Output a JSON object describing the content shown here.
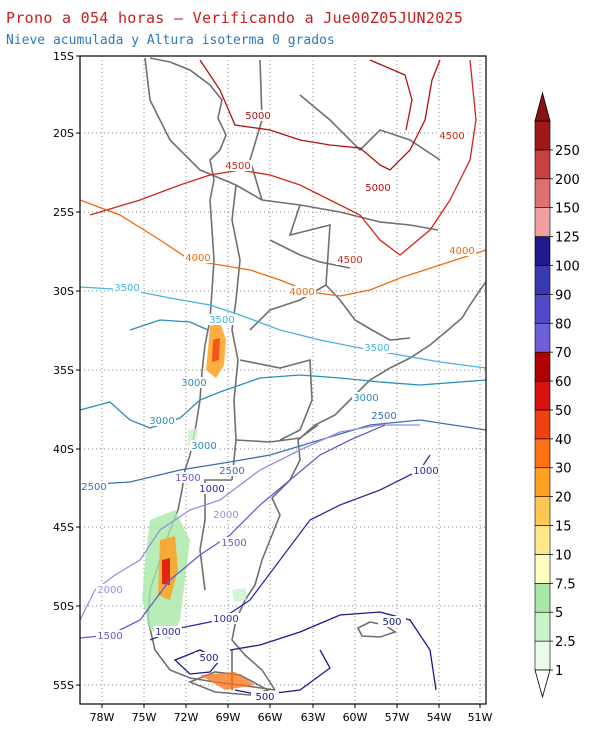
{
  "title": "Prono a 054 horas — Verificando a Jue00Z05JUN2025",
  "subtitle": "Nieve acumulada y Altura isoterma 0 grados",
  "map": {
    "lat_ticks": [
      "15S",
      "20S",
      "25S",
      "30S",
      "35S",
      "40S",
      "45S",
      "50S",
      "55S"
    ],
    "lon_ticks": [
      "78W",
      "75W",
      "72W",
      "69W",
      "66W",
      "63W",
      "60W",
      "57W",
      "54W",
      "51W"
    ],
    "lat_range": [
      -56,
      -15
    ],
    "lon_range": [
      -80,
      -50
    ],
    "grid": true
  },
  "isotherm_colors": {
    "500": "#1a1a8c",
    "1000": "#2e2ea0",
    "1500": "#6a5ad0",
    "2000": "#9b8ee0",
    "2500": "#3a6fb0",
    "3000": "#2b8fb8",
    "3500": "#49b3e0",
    "4000": "#ee6a10",
    "4500": "#d02818",
    "5000": "#b01010"
  },
  "contour_labels": [
    {
      "text": "5000",
      "key": "5000"
    },
    {
      "text": "4500",
      "key": "4500"
    },
    {
      "text": "4500",
      "key": "4500"
    },
    {
      "text": "5000",
      "key": "5000"
    },
    {
      "text": "4500",
      "key": "4500"
    },
    {
      "text": "4000",
      "key": "4000"
    },
    {
      "text": "4000",
      "key": "4000"
    },
    {
      "text": "4000",
      "key": "4000"
    },
    {
      "text": "3500",
      "key": "3500"
    },
    {
      "text": "3500",
      "key": "3500"
    },
    {
      "text": "3500",
      "key": "3500"
    },
    {
      "text": "3000",
      "key": "3000"
    },
    {
      "text": "3000",
      "key": "3000"
    },
    {
      "text": "3000",
      "key": "3000"
    },
    {
      "text": "3000",
      "key": "3000"
    },
    {
      "text": "2500",
      "key": "2500"
    },
    {
      "text": "2500",
      "key": "2500"
    },
    {
      "text": "2500",
      "key": "2500"
    },
    {
      "text": "2000",
      "key": "2000"
    },
    {
      "text": "2000",
      "key": "2000"
    },
    {
      "text": "1500",
      "key": "1500"
    },
    {
      "text": "1500",
      "key": "1500"
    },
    {
      "text": "1500",
      "key": "1500"
    },
    {
      "text": "1000",
      "key": "1000"
    },
    {
      "text": "1000",
      "key": "1000"
    },
    {
      "text": "1000",
      "key": "1000"
    },
    {
      "text": "1000",
      "key": "1000"
    },
    {
      "text": "500",
      "key": "500"
    },
    {
      "text": "500",
      "key": "500"
    },
    {
      "text": "500",
      "key": "500"
    }
  ],
  "colorbar": {
    "labels": [
      "1",
      "2.5",
      "5",
      "7.5",
      "10",
      "15",
      "20",
      "30",
      "40",
      "50",
      "60",
      "70",
      "80",
      "90",
      "100",
      "125",
      "150",
      "200",
      "250"
    ],
    "colors": [
      "#eafbea",
      "#c8f2c8",
      "#a6e8a6",
      "#ffffc0",
      "#ffe88a",
      "#ffc850",
      "#ffa020",
      "#ff7010",
      "#f04010",
      "#d81010",
      "#b00000",
      "#7060d8",
      "#5048c8",
      "#3838b0",
      "#201890",
      "#f0a0a0",
      "#e07070",
      "#c84040",
      "#a01818"
    ],
    "arrow_color": "#8c1010"
  }
}
